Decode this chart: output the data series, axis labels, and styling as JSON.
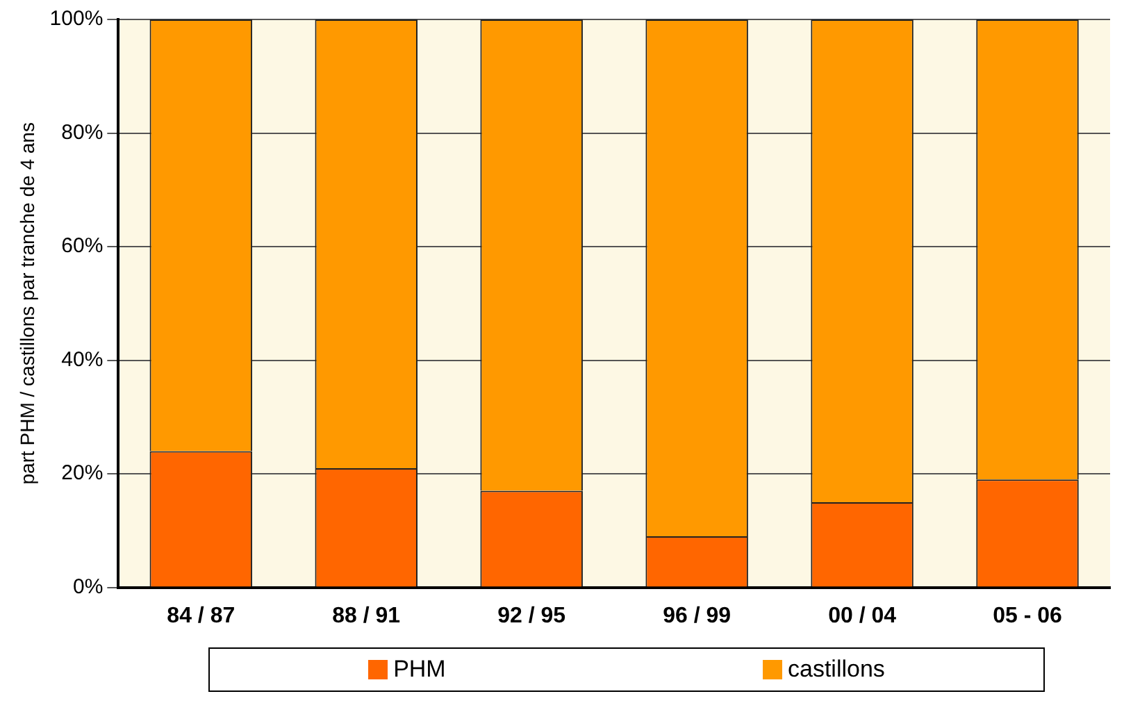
{
  "chart_data": {
    "type": "bar",
    "stacked": true,
    "ylabel": "part PHM / castillons par tranche de 4 ans",
    "categories": [
      "84 / 87",
      "88 / 91",
      "92 / 95",
      "96 / 99",
      "00 / 04",
      "05 - 06"
    ],
    "series": [
      {
        "name": "PHM",
        "color": "#ff6600",
        "values": [
          24,
          21,
          17,
          9,
          15,
          19
        ]
      },
      {
        "name": "castillons",
        "color": "#ff9900",
        "values": [
          76,
          79,
          83,
          91,
          85,
          81
        ]
      }
    ],
    "ylim": [
      0,
      100
    ],
    "yticks": [
      {
        "value": 0,
        "label": "0%"
      },
      {
        "value": 20,
        "label": "20%"
      },
      {
        "value": 40,
        "label": "40%"
      },
      {
        "value": 60,
        "label": "60%"
      },
      {
        "value": 80,
        "label": "80%"
      },
      {
        "value": 100,
        "label": "100%"
      }
    ],
    "grid": "y",
    "legend": "bottom"
  }
}
